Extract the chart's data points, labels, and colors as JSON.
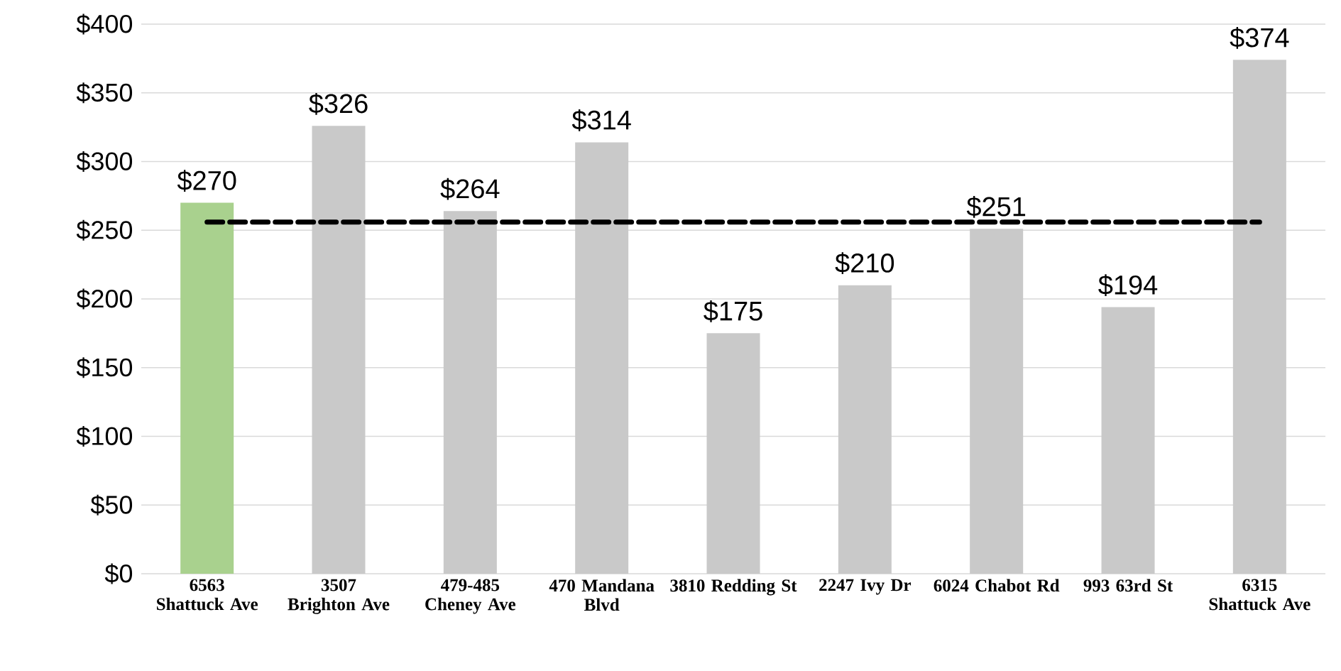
{
  "chart_data": {
    "type": "bar",
    "categories": [
      "6563 Shattuck Ave",
      "3507 Brighton Ave",
      "479-485 Cheney Ave",
      "470 Mandana Blvd",
      "3810 Redding St",
      "2247 Ivy Dr",
      "6024 Chabot Rd",
      "993 63rd St",
      "6315 Shattuck Ave"
    ],
    "values": [
      270,
      326,
      264,
      314,
      175,
      210,
      251,
      194,
      374
    ],
    "value_labels": [
      "$270",
      "$326",
      "$264",
      "$314",
      "$175",
      "$210",
      "$251",
      "$194",
      "$374"
    ],
    "colors": [
      "#a9d18e",
      "#c9c9c9",
      "#c9c9c9",
      "#c9c9c9",
      "#c9c9c9",
      "#c9c9c9",
      "#c9c9c9",
      "#c9c9c9",
      "#c9c9c9"
    ],
    "ylim": [
      0,
      400
    ],
    "yticks": [
      {
        "value": 0,
        "label": "$0"
      },
      {
        "value": 50,
        "label": "$50"
      },
      {
        "value": 100,
        "label": "$100"
      },
      {
        "value": 150,
        "label": "$150"
      },
      {
        "value": 200,
        "label": "$200"
      },
      {
        "value": 250,
        "label": "$250"
      },
      {
        "value": 300,
        "label": "$300"
      },
      {
        "value": 350,
        "label": "$350"
      },
      {
        "value": 400,
        "label": "$400"
      }
    ],
    "grid": "y",
    "ref_lines": [
      {
        "axis": "y",
        "value": 256,
        "color": "#000000",
        "line_style": "dashed"
      }
    ]
  }
}
